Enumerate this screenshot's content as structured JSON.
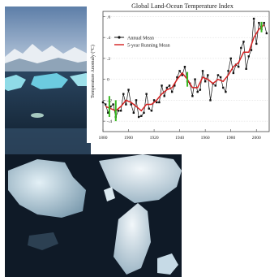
{
  "chart_data": {
    "type": "line",
    "title": "Global Land-Ocean Temperature Index",
    "xlabel": "",
    "ylabel": "Temperature Anomaly (°C)",
    "xlim": [
      1880,
      2010
    ],
    "ylim": [
      -0.5,
      0.65
    ],
    "x_ticks": [
      1880,
      1900,
      1920,
      1940,
      1960,
      1980,
      2000
    ],
    "x_tick_labels": [
      "1880",
      "1900",
      "1920",
      "1940",
      "1960",
      "1980",
      "2000"
    ],
    "y_ticks": [
      -0.4,
      -0.2,
      0,
      0.2,
      0.4,
      0.6
    ],
    "y_tick_labels": [
      "-.4",
      "-.2",
      "0",
      ".2",
      ".4",
      ".6"
    ],
    "legend_position": "top-left",
    "colors": {
      "annual": "#111111",
      "running": "#d42020",
      "uncertainty": "#37b81f"
    },
    "series": [
      {
        "name": "Annual Mean",
        "x": [
          1880,
          1882,
          1884,
          1886,
          1888,
          1890,
          1892,
          1894,
          1896,
          1898,
          1900,
          1902,
          1904,
          1906,
          1908,
          1910,
          1912,
          1914,
          1916,
          1918,
          1920,
          1922,
          1924,
          1926,
          1928,
          1930,
          1932,
          1934,
          1936,
          1938,
          1940,
          1942,
          1944,
          1946,
          1948,
          1950,
          1952,
          1954,
          1956,
          1958,
          1960,
          1962,
          1964,
          1966,
          1968,
          1970,
          1972,
          1974,
          1976,
          1978,
          1980,
          1982,
          1984,
          1986,
          1988,
          1990,
          1992,
          1994,
          1996,
          1998,
          2000,
          2002,
          2004,
          2006,
          2008
        ],
        "y": [
          -0.22,
          -0.24,
          -0.32,
          -0.26,
          -0.24,
          -0.36,
          -0.3,
          -0.3,
          -0.14,
          -0.24,
          -0.1,
          -0.24,
          -0.32,
          -0.2,
          -0.36,
          -0.35,
          -0.32,
          -0.14,
          -0.28,
          -0.3,
          -0.2,
          -0.22,
          -0.22,
          -0.06,
          -0.16,
          -0.08,
          -0.06,
          -0.12,
          -0.06,
          0.02,
          0.08,
          0.04,
          0.12,
          -0.02,
          -0.04,
          -0.16,
          0.0,
          -0.12,
          -0.1,
          0.08,
          -0.02,
          0.04,
          -0.2,
          -0.04,
          -0.06,
          0.04,
          0.02,
          -0.08,
          -0.12,
          0.08,
          0.2,
          0.06,
          0.14,
          0.12,
          0.3,
          0.36,
          0.1,
          0.22,
          0.28,
          0.58,
          0.34,
          0.54,
          0.48,
          0.54,
          0.44
        ]
      },
      {
        "name": "5-year Running Mean",
        "x": [
          1882,
          1886,
          1890,
          1894,
          1898,
          1902,
          1906,
          1910,
          1914,
          1918,
          1922,
          1926,
          1930,
          1934,
          1938,
          1942,
          1946,
          1950,
          1954,
          1958,
          1962,
          1966,
          1970,
          1974,
          1978,
          1982,
          1986,
          1990,
          1994,
          1998,
          2002,
          2006
        ],
        "y": [
          -0.26,
          -0.28,
          -0.3,
          -0.26,
          -0.2,
          -0.22,
          -0.26,
          -0.3,
          -0.24,
          -0.24,
          -0.2,
          -0.14,
          -0.1,
          -0.08,
          0.0,
          0.06,
          0.0,
          -0.08,
          -0.08,
          0.02,
          0.0,
          -0.04,
          0.0,
          -0.02,
          0.04,
          0.12,
          0.16,
          0.26,
          0.26,
          0.4,
          0.48,
          0.52
        ]
      }
    ],
    "uncertainty_bars": [
      {
        "x": 1885,
        "y": -0.26,
        "err": 0.1
      },
      {
        "x": 1890,
        "y": -0.3,
        "err": 0.1
      },
      {
        "x": 1946,
        "y": 0.0,
        "err": 0.07
      },
      {
        "x": 2004,
        "y": 0.5,
        "err": 0.05
      }
    ]
  }
}
